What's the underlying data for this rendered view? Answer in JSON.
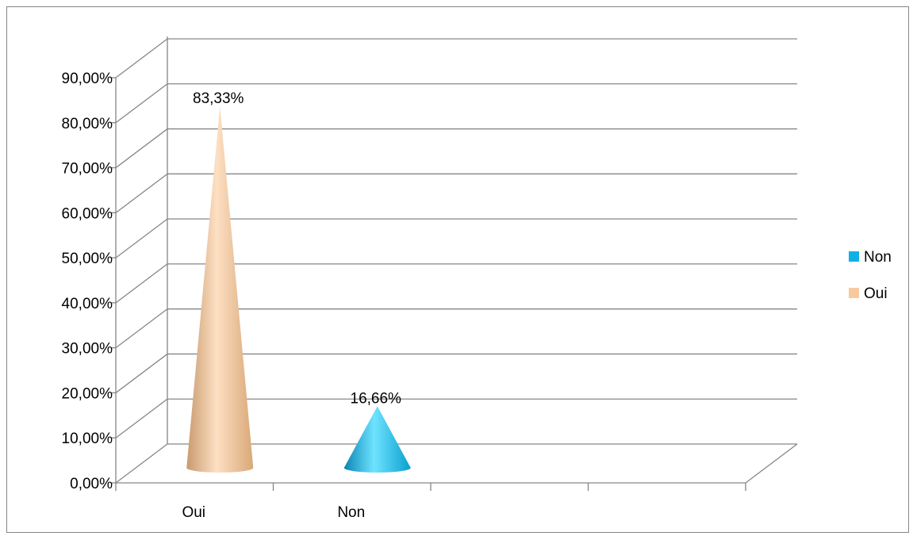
{
  "chart_data": {
    "type": "bar",
    "categories": [
      "Oui",
      "Non"
    ],
    "values": [
      83.33,
      16.66
    ],
    "data_labels": [
      "83,33%",
      "16,66%"
    ],
    "ylim": [
      0,
      90
    ],
    "yticks": [
      0,
      10,
      20,
      30,
      40,
      50,
      60,
      70,
      80,
      90
    ],
    "ytick_labels": [
      "0,00%",
      "10,00%",
      "20,00%",
      "30,00%",
      "40,00%",
      "50,00%",
      "60,00%",
      "70,00%",
      "80,00%",
      "90,00%"
    ],
    "title": "",
    "xlabel": "",
    "ylabel": "",
    "grid": true,
    "mark_shape": "cone",
    "legend": {
      "position": "right",
      "entries": [
        {
          "label": "Non",
          "color": "#0FB0E4"
        },
        {
          "label": "Oui",
          "color": "#F8C99E"
        }
      ]
    },
    "colors": {
      "Oui": "#F8C99E",
      "Non": "#0FB0E4"
    }
  }
}
